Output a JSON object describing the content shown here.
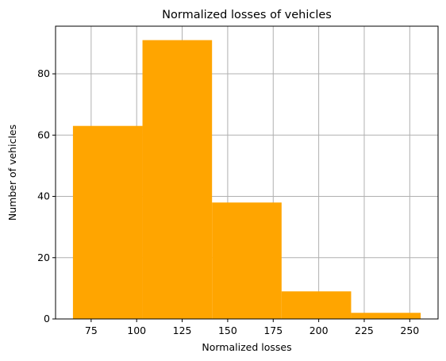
{
  "chart_data": {
    "type": "bar",
    "title": "Normalized losses of vehicles",
    "xlabel": "Normalized losses",
    "ylabel": "Number of vehicles",
    "bins": [
      {
        "start": 65,
        "end": 103.2,
        "value": 63
      },
      {
        "start": 103.2,
        "end": 141.4,
        "value": 91
      },
      {
        "start": 141.4,
        "end": 179.6,
        "value": 38
      },
      {
        "start": 179.6,
        "end": 217.8,
        "value": 9
      },
      {
        "start": 217.8,
        "end": 256,
        "value": 2
      }
    ],
    "xlim": [
      55.45,
      265.55
    ],
    "ylim": [
      0,
      95.55
    ],
    "xticks": [
      75,
      100,
      125,
      150,
      175,
      200,
      225,
      250
    ],
    "yticks": [
      0,
      20,
      40,
      60,
      80
    ],
    "grid": true,
    "bar_color": "#FFA500",
    "grid_color": "#B0B0B0"
  }
}
